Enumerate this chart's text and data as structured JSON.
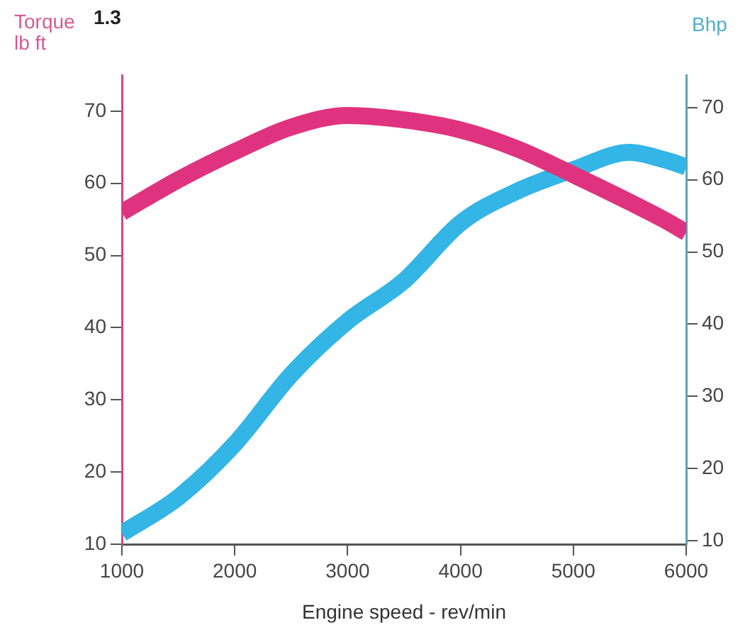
{
  "chart_data": {
    "type": "line",
    "title": "1.3",
    "xlabel": "Engine speed - rev/min",
    "ylabel": "Torque\nlb ft",
    "y2label": "Bhp",
    "x": [
      1000,
      1500,
      2000,
      2500,
      3000,
      3500,
      4000,
      4500,
      5000,
      5500,
      5800,
      6000
    ],
    "series": [
      {
        "color": "#e0337f",
        "values": [
          56,
          60.5,
          64.4,
          67.8,
          69.4,
          68.8,
          67.4,
          64.8,
          61.2,
          57.4,
          55,
          53.2
        ]
      },
      {
        "color": "#33b5e5",
        "axis": "y2",
        "values": [
          11,
          16,
          23.4,
          33,
          40.4,
          46,
          54,
          58.4,
          61.4,
          63.8,
          62.8,
          61.8
        ]
      }
    ],
    "xlim": [
      1000,
      6000
    ],
    "xticks": [
      1000,
      2000,
      3000,
      4000,
      5000,
      6000
    ],
    "ylim": [
      10,
      75
    ],
    "yticks": [
      10,
      20,
      30,
      40,
      50,
      60,
      70
    ],
    "y2lim": [
      9.5,
      74.5
    ],
    "y2ticks": [
      10,
      20,
      30,
      40,
      50,
      60,
      70
    ],
    "grid": false,
    "legend": false,
    "marker": "none",
    "line_style": "solid"
  }
}
